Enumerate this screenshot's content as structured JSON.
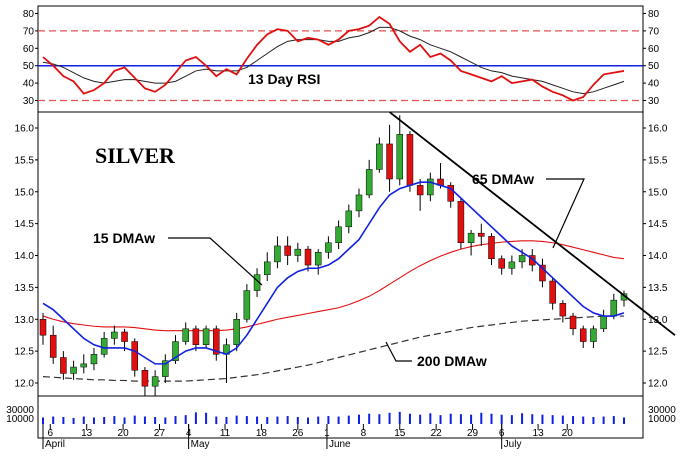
{
  "chart_data": {
    "type": "candlestick",
    "title": "SILVER",
    "rsi_panel": {
      "label": "13 Day RSI",
      "y_ticks": [
        30,
        40,
        50,
        60,
        70,
        80
      ],
      "ylim": [
        28,
        82
      ],
      "levels": {
        "overbought": 70,
        "middle": 50,
        "oversold": 30
      },
      "rsi": [
        55,
        50,
        44,
        41,
        34,
        36,
        40,
        47,
        49,
        43,
        37,
        35,
        39,
        46,
        53,
        55,
        50,
        44,
        48,
        45,
        54,
        62,
        68,
        71,
        70,
        64,
        66,
        65,
        62,
        65,
        70,
        71,
        73,
        78,
        74,
        64,
        58,
        62,
        55,
        57,
        53,
        47,
        45,
        43,
        41,
        44,
        40,
        41,
        42,
        38,
        35,
        33,
        30,
        32,
        39,
        45,
        46,
        47
      ],
      "signal": [
        52,
        51,
        49,
        46,
        43,
        41,
        40,
        41,
        42,
        42,
        41,
        40,
        40,
        41,
        44,
        47,
        48,
        47,
        47,
        47,
        49,
        53,
        57,
        61,
        64,
        65,
        65,
        65,
        64,
        64,
        66,
        67,
        69,
        72,
        72,
        70,
        67,
        65,
        62,
        60,
        58,
        55,
        52,
        49,
        47,
        46,
        44,
        43,
        42,
        41,
        39,
        37,
        35,
        34,
        35,
        37,
        39,
        41
      ]
    },
    "price_panel": {
      "y_ticks": [
        12.0,
        12.5,
        13.0,
        13.5,
        14.0,
        14.5,
        15.0,
        15.5,
        16.0
      ],
      "ylim": [
        11.75,
        16.3
      ],
      "ohlc": [
        [
          13.0,
          13.1,
          12.6,
          12.75
        ],
        [
          12.75,
          12.9,
          12.3,
          12.4
        ],
        [
          12.4,
          12.5,
          12.05,
          12.15
        ],
        [
          12.15,
          12.35,
          12.05,
          12.25
        ],
        [
          12.25,
          12.45,
          12.15,
          12.3
        ],
        [
          12.3,
          12.55,
          12.2,
          12.45
        ],
        [
          12.45,
          12.8,
          12.4,
          12.7
        ],
        [
          12.7,
          12.9,
          12.6,
          12.8
        ],
        [
          12.8,
          12.85,
          12.5,
          12.65
        ],
        [
          12.65,
          12.7,
          12.1,
          12.2
        ],
        [
          12.2,
          12.25,
          11.8,
          11.95
        ],
        [
          11.95,
          12.2,
          11.8,
          12.1
        ],
        [
          12.1,
          12.45,
          12.0,
          12.35
        ],
        [
          12.35,
          12.75,
          12.3,
          12.65
        ],
        [
          12.65,
          12.95,
          12.6,
          12.85
        ],
        [
          12.85,
          12.9,
          12.5,
          12.6
        ],
        [
          12.6,
          12.9,
          12.55,
          12.85
        ],
        [
          12.85,
          12.9,
          12.35,
          12.45
        ],
        [
          12.45,
          12.7,
          12.0,
          12.6
        ],
        [
          12.6,
          13.1,
          12.5,
          13.0
        ],
        [
          13.0,
          13.55,
          12.95,
          13.45
        ],
        [
          13.45,
          13.8,
          13.35,
          13.7
        ],
        [
          13.7,
          14.05,
          13.6,
          13.9
        ],
        [
          13.9,
          14.3,
          13.8,
          14.15
        ],
        [
          14.15,
          14.3,
          13.85,
          14.0
        ],
        [
          14.0,
          14.2,
          13.9,
          14.1
        ],
        [
          14.1,
          14.15,
          13.75,
          13.85
        ],
        [
          13.85,
          14.1,
          13.7,
          14.05
        ],
        [
          14.05,
          14.3,
          13.95,
          14.2
        ],
        [
          14.2,
          14.55,
          14.1,
          14.45
        ],
        [
          14.45,
          14.8,
          14.35,
          14.7
        ],
        [
          14.7,
          15.05,
          14.6,
          14.95
        ],
        [
          14.95,
          15.5,
          14.9,
          15.35
        ],
        [
          15.35,
          15.85,
          15.3,
          15.75
        ],
        [
          15.75,
          16.05,
          15.0,
          15.2
        ],
        [
          15.2,
          16.2,
          15.1,
          15.9
        ],
        [
          15.9,
          15.95,
          15.0,
          15.1
        ],
        [
          15.1,
          15.2,
          14.7,
          14.95
        ],
        [
          14.95,
          15.3,
          14.85,
          15.2
        ],
        [
          15.2,
          15.45,
          15.05,
          15.1
        ],
        [
          15.1,
          15.15,
          14.75,
          14.85
        ],
        [
          14.85,
          14.9,
          14.1,
          14.2
        ],
        [
          14.2,
          14.4,
          14.0,
          14.35
        ],
        [
          14.35,
          14.5,
          14.15,
          14.3
        ],
        [
          14.3,
          14.35,
          13.85,
          13.95
        ],
        [
          13.95,
          14.0,
          13.7,
          13.8
        ],
        [
          13.8,
          14.0,
          13.7,
          13.9
        ],
        [
          13.9,
          14.1,
          13.8,
          14.0
        ],
        [
          14.0,
          14.1,
          13.75,
          13.85
        ],
        [
          13.85,
          13.95,
          13.5,
          13.6
        ],
        [
          13.6,
          13.65,
          13.15,
          13.25
        ],
        [
          13.25,
          13.3,
          12.95,
          13.05
        ],
        [
          13.05,
          13.1,
          12.75,
          12.85
        ],
        [
          12.85,
          12.9,
          12.55,
          12.65
        ],
        [
          12.65,
          12.9,
          12.55,
          12.85
        ],
        [
          12.85,
          13.15,
          12.8,
          13.05
        ],
        [
          13.05,
          13.4,
          13.0,
          13.3
        ],
        [
          13.3,
          13.45,
          13.2,
          13.4
        ]
      ],
      "dma15": [
        13.25,
        13.15,
        13.0,
        12.85,
        12.7,
        12.6,
        12.55,
        12.55,
        12.55,
        12.5,
        12.4,
        12.3,
        12.3,
        12.4,
        12.5,
        12.55,
        12.55,
        12.5,
        12.45,
        12.55,
        12.75,
        13.0,
        13.25,
        13.5,
        13.65,
        13.75,
        13.8,
        13.8,
        13.85,
        13.95,
        14.1,
        14.25,
        14.5,
        14.75,
        14.95,
        15.05,
        15.1,
        15.15,
        15.15,
        15.1,
        15.05,
        14.9,
        14.75,
        14.6,
        14.45,
        14.3,
        14.15,
        14.05,
        13.95,
        13.8,
        13.65,
        13.5,
        13.35,
        13.2,
        13.1,
        13.05,
        13.05,
        13.1
      ],
      "dma65": [
        13.05,
        13.0,
        12.96,
        12.93,
        12.91,
        12.89,
        12.88,
        12.88,
        12.88,
        12.87,
        12.85,
        12.83,
        12.82,
        12.82,
        12.82,
        12.82,
        12.82,
        12.82,
        12.83,
        12.85,
        12.88,
        12.92,
        12.96,
        13.0,
        13.03,
        13.06,
        13.09,
        13.12,
        13.15,
        13.18,
        13.23,
        13.29,
        13.36,
        13.45,
        13.55,
        13.65,
        13.75,
        13.84,
        13.92,
        13.99,
        14.05,
        14.1,
        14.14,
        14.17,
        14.19,
        14.21,
        14.22,
        14.23,
        14.23,
        14.22,
        14.2,
        14.17,
        14.13,
        14.09,
        14.05,
        14.01,
        13.97,
        13.95
      ],
      "dma200": [
        12.1,
        12.09,
        12.08,
        12.07,
        12.06,
        12.05,
        12.05,
        12.04,
        12.04,
        12.03,
        12.03,
        12.03,
        12.03,
        12.03,
        12.03,
        12.04,
        12.05,
        12.06,
        12.07,
        12.09,
        12.11,
        12.13,
        12.16,
        12.19,
        12.22,
        12.25,
        12.28,
        12.32,
        12.36,
        12.4,
        12.44,
        12.48,
        12.52,
        12.56,
        12.6,
        12.64,
        12.68,
        12.72,
        12.75,
        12.78,
        12.81,
        12.84,
        12.87,
        12.89,
        12.91,
        12.93,
        12.95,
        12.97,
        12.98,
        12.99,
        13.0,
        13.01,
        13.02,
        13.03,
        13.04,
        13.05,
        13.05,
        13.05
      ],
      "trendline": {
        "from": [
          34,
          16.25
        ],
        "to": [
          62,
          12.75
        ]
      }
    },
    "volume": {
      "y_ticks": [
        "30000",
        "10000"
      ],
      "values": [
        14000,
        16000,
        15000,
        13000,
        16000,
        14000,
        15000,
        17000,
        14000,
        18000,
        16000,
        15000,
        14000,
        17000,
        19000,
        25000,
        24000,
        16000,
        15000,
        18000,
        17000,
        16000,
        15000,
        16000,
        17000,
        15000,
        14000,
        16000,
        17000,
        16000,
        18000,
        20000,
        22000,
        21000,
        24000,
        26000,
        22000,
        20000,
        23000,
        19000,
        22000,
        21000,
        20000,
        24000,
        22000,
        20000,
        19000,
        23000,
        21000,
        20000,
        19000,
        18000,
        17000,
        16000,
        15000,
        16000,
        17000,
        14000
      ]
    },
    "x_tick_labels": [
      "6",
      "13",
      "20",
      "27",
      "4",
      "11",
      "18",
      "26",
      "1",
      "8",
      "15",
      "22",
      "29",
      "6",
      "13",
      "20"
    ],
    "x_tick_index": [
      1,
      6,
      11,
      16,
      20,
      25,
      30,
      35,
      39,
      44,
      49,
      54,
      59,
      63,
      68,
      72
    ],
    "month_labels": [
      "April",
      "May",
      "June",
      "July"
    ],
    "month_index": [
      0,
      20,
      39,
      63
    ],
    "annotations": {
      "dma15": "15 DMAw",
      "dma65": "65 DMAw",
      "dma200": "200 DMAw"
    },
    "colors": {
      "up": "#33aa33",
      "down": "#e01010",
      "rsi": "#e01010",
      "signal": "#222222",
      "dma15": "#1020e0",
      "dma65": "#e01010",
      "dma200": "#333333",
      "volume": "#1020e0",
      "level_blue": "#1020e0",
      "level_red": "#e05050"
    }
  }
}
